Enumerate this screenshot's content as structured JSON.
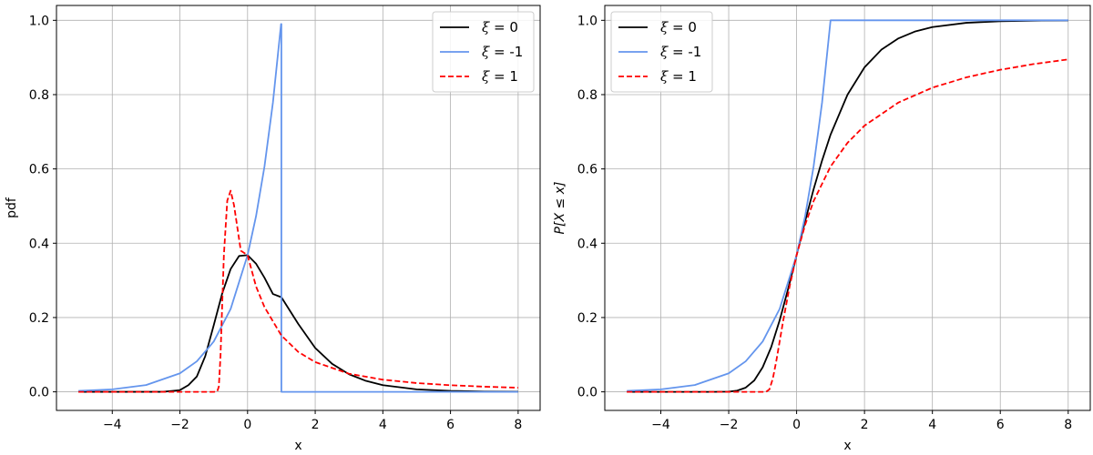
{
  "chart_data": [
    {
      "type": "line",
      "panel": "left",
      "title": "",
      "xlabel": "x",
      "ylabel": "pdf",
      "xlim": [
        -5.65,
        8.65
      ],
      "ylim": [
        -0.05,
        1.04
      ],
      "xticks": [
        -4,
        -2,
        0,
        2,
        4,
        6,
        8
      ],
      "xtick_labels": [
        "−4",
        "−2",
        "0",
        "2",
        "4",
        "6",
        "8"
      ],
      "yticks": [
        0.0,
        0.2,
        0.4,
        0.6,
        0.8,
        1.0
      ],
      "ytick_labels": [
        "0.0",
        "0.2",
        "0.4",
        "0.6",
        "0.8",
        "1.0"
      ],
      "grid": true,
      "legend_position": "top-right",
      "series": [
        {
          "name": "ξ = 0",
          "xi_label": "ξ",
          "value_label": " = 0",
          "color": "#000000",
          "dash": "solid",
          "x": [
            -5,
            -2.5,
            -2,
            -1.75,
            -1.5,
            -1.25,
            -1,
            -0.75,
            -0.5,
            -0.25,
            0,
            0.25,
            0.5,
            0.75,
            1,
            1.5,
            2,
            2.5,
            3,
            3.5,
            4,
            5,
            6,
            7,
            8
          ],
          "y": [
            0,
            0.0001,
            0.0046,
            0.018,
            0.0412,
            0.0962,
            0.1794,
            0.2648,
            0.3307,
            0.3658,
            0.3679,
            0.3451,
            0.3072,
            0.2633,
            0.2546,
            0.1827,
            0.1181,
            0.0754,
            0.0474,
            0.0295,
            0.018,
            0.0066,
            0.0025,
            0.0009,
            0.0003
          ]
        },
        {
          "name": "ξ = -1",
          "xi_label": "ξ",
          "value_label": " = -1",
          "color": "#6495ed",
          "dash": "solid",
          "x": [
            -5,
            -4,
            -3,
            -2,
            -1.5,
            -1,
            -0.5,
            0,
            0.25,
            0.5,
            0.75,
            0.99,
            1.0,
            1.0001,
            8
          ],
          "y": [
            0.0025,
            0.0067,
            0.0183,
            0.0498,
            0.0821,
            0.1353,
            0.2231,
            0.3679,
            0.4724,
            0.6065,
            0.7788,
            0.99,
            0.99,
            0.0,
            0.0
          ]
        },
        {
          "name": "ξ = 1",
          "xi_label": "ξ",
          "value_label": " = 1",
          "color": "#ff0000",
          "dash": "dashed",
          "x": [
            -5,
            -1,
            -0.9,
            -0.85,
            -0.8,
            -0.75,
            -0.7,
            -0.6,
            -0.5,
            -0.4,
            -0.3,
            -0.2,
            0,
            0.25,
            0.5,
            1,
            1.5,
            2,
            3,
            4,
            5,
            6,
            7,
            8
          ],
          "y": [
            0,
            0,
            0.0004,
            0.0138,
            0.0963,
            0.2344,
            0.3684,
            0.5148,
            0.5413,
            0.5021,
            0.4414,
            0.3799,
            0.3679,
            0.2838,
            0.2282,
            0.1516,
            0.1074,
            0.0801,
            0.0487,
            0.0328,
            0.0236,
            0.0178,
            0.0139,
            0.0111
          ]
        }
      ]
    },
    {
      "type": "line",
      "panel": "right",
      "title": "",
      "xlabel": "x",
      "ylabel": "P[X ≤ x]",
      "xlim": [
        -5.65,
        8.65
      ],
      "ylim": [
        -0.05,
        1.04
      ],
      "xticks": [
        -4,
        -2,
        0,
        2,
        4,
        6,
        8
      ],
      "xtick_labels": [
        "−4",
        "−2",
        "0",
        "2",
        "4",
        "6",
        "8"
      ],
      "yticks": [
        0.0,
        0.2,
        0.4,
        0.6,
        0.8,
        1.0
      ],
      "ytick_labels": [
        "0.0",
        "0.2",
        "0.4",
        "0.6",
        "0.8",
        "1.0"
      ],
      "grid": true,
      "legend_position": "top-left",
      "series": [
        {
          "name": "ξ = 0",
          "xi_label": "ξ",
          "value_label": " = 0",
          "color": "#000000",
          "dash": "solid",
          "x": [
            -5,
            -2.5,
            -2,
            -1.75,
            -1.5,
            -1.25,
            -1,
            -0.75,
            -0.5,
            -0.25,
            0,
            0.25,
            0.5,
            0.75,
            1,
            1.5,
            2,
            2.5,
            3,
            3.5,
            4,
            5,
            6,
            7,
            8
          ],
          "y": [
            0,
            0.0,
            0.0006,
            0.0032,
            0.0113,
            0.0303,
            0.066,
            0.12,
            0.1923,
            0.2769,
            0.3679,
            0.4589,
            0.5452,
            0.6226,
            0.6922,
            0.8,
            0.8734,
            0.9212,
            0.9514,
            0.9703,
            0.9819,
            0.9933,
            0.9975,
            0.9991,
            0.9997
          ]
        },
        {
          "name": "ξ = -1",
          "xi_label": "ξ",
          "value_label": " = -1",
          "color": "#6495ed",
          "dash": "solid",
          "x": [
            -5,
            -4,
            -3,
            -2,
            -1.5,
            -1,
            -0.5,
            0,
            0.25,
            0.5,
            0.75,
            1.0,
            8
          ],
          "y": [
            0.0025,
            0.0067,
            0.0183,
            0.0498,
            0.0821,
            0.1353,
            0.2231,
            0.3679,
            0.4724,
            0.6065,
            0.7788,
            1.0,
            1.0
          ]
        },
        {
          "name": "ξ = 1",
          "xi_label": "ξ",
          "value_label": " = 1",
          "color": "#ff0000",
          "dash": "dashed",
          "x": [
            -5,
            -1,
            -0.9,
            -0.8,
            -0.7,
            -0.6,
            -0.5,
            -0.4,
            -0.2,
            0,
            0.25,
            0.5,
            1,
            1.5,
            2,
            3,
            4,
            5,
            6,
            7,
            8
          ],
          "y": [
            0,
            0,
            0.0,
            0.0067,
            0.0357,
            0.0821,
            0.1353,
            0.1889,
            0.2865,
            0.3679,
            0.4493,
            0.5134,
            0.6065,
            0.6703,
            0.7165,
            0.7788,
            0.8187,
            0.8465,
            0.8669,
            0.8825,
            0.8948
          ]
        }
      ]
    }
  ]
}
